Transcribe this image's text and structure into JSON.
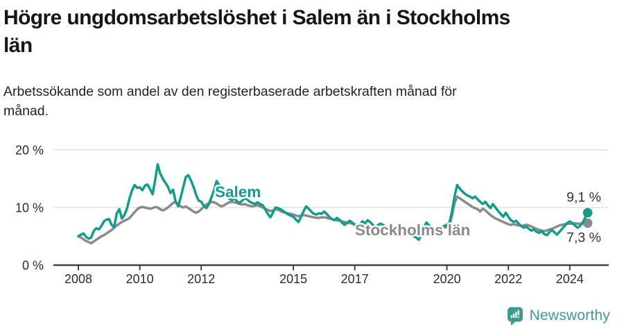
{
  "header": {
    "title_line_1": "Högre ungdomsarbetslöshet i Salem än i Stockholms",
    "title_line_2": "län",
    "subtitle_line_1": "Arbetssökande som andel av den registerbaserade arbetskraften månad för",
    "subtitle_line_2": "månad."
  },
  "chart_data": {
    "type": "line",
    "title": "Högre ungdomsarbetslöshet i Salem än i Stockholms län",
    "subtitle": "Arbetssökande som andel av den registerbaserade arbetskraften månad för månad.",
    "unit": "%",
    "frequency": "monthly",
    "x_start": "2008-01",
    "x_end": "2024-08",
    "ylim": [
      0,
      20
    ],
    "grid": "horizontal",
    "legend_position": "inline-labels",
    "y_axis": {
      "ticks": [
        {
          "value": 0,
          "label": "0 %"
        },
        {
          "value": 10,
          "label": "10 %"
        },
        {
          "value": 20,
          "label": "20 %"
        }
      ]
    },
    "x_axis": {
      "ticks": [
        {
          "year": 2008,
          "label": "2008"
        },
        {
          "year": 2010,
          "label": "2010"
        },
        {
          "year": 2012,
          "label": "2012"
        },
        {
          "year": 2015,
          "label": "2015"
        },
        {
          "year": 2017,
          "label": "2017"
        },
        {
          "year": 2020,
          "label": "2020"
        },
        {
          "year": 2022,
          "label": "2022"
        },
        {
          "year": 2024,
          "label": "2024"
        }
      ]
    },
    "series": [
      {
        "name": "Salem",
        "color": "#129c8d",
        "end_label": "9,1 %",
        "end_value": 9.1,
        "values": [
          5.0,
          5.3,
          5.5,
          4.9,
          4.6,
          4.8,
          5.9,
          6.4,
          6.2,
          6.8,
          7.6,
          7.9,
          8.0,
          7.0,
          6.6,
          9.0,
          9.7,
          8.1,
          8.7,
          9.8,
          11.6,
          13.0,
          13.9,
          13.4,
          13.5,
          13.0,
          13.8,
          14.0,
          13.2,
          12.3,
          14.8,
          17.5,
          15.9,
          15.0,
          14.3,
          13.6,
          12.5,
          13.1,
          11.0,
          10.2,
          11.8,
          13.6,
          15.3,
          15.6,
          14.7,
          13.6,
          12.2,
          11.2,
          11.0,
          10.3,
          9.9,
          10.6,
          11.8,
          13.0,
          14.6,
          13.9,
          13.2,
          12.6,
          12.0,
          11.5,
          11.3,
          11.6,
          11.1,
          10.8,
          11.2,
          11.6,
          11.4,
          11.0,
          10.8,
          10.6,
          10.9,
          10.6,
          10.4,
          9.7,
          8.9,
          8.3,
          9.1,
          10.0,
          9.9,
          9.7,
          9.4,
          9.1,
          8.8,
          8.6,
          8.4,
          7.9,
          7.5,
          8.4,
          9.4,
          10.2,
          9.8,
          9.3,
          8.9,
          8.8,
          9.0,
          8.9,
          9.3,
          8.9,
          8.4,
          8.0,
          7.8,
          8.2,
          7.9,
          7.4,
          7.0,
          7.3,
          7.7,
          7.4,
          6.9,
          6.6,
          7.1,
          7.6,
          7.2,
          7.8,
          7.5,
          7.0,
          6.6,
          6.9,
          7.2,
          7.0,
          6.7,
          6.4,
          6.8,
          6.3,
          5.9,
          6.4,
          6.7,
          6.3,
          5.9,
          5.6,
          5.3,
          5.0,
          4.8,
          4.4,
          5.4,
          6.6,
          7.4,
          6.9,
          6.5,
          6.2,
          6.0,
          6.3,
          6.6,
          6.8,
          7.0,
          7.4,
          9.4,
          12.0,
          13.9,
          13.3,
          12.8,
          12.4,
          12.1,
          11.9,
          11.6,
          11.9,
          11.4,
          11.0,
          10.6,
          11.0,
          10.4,
          9.9,
          10.6,
          10.0,
          9.4,
          8.9,
          8.4,
          9.1,
          8.4,
          7.8,
          7.5,
          7.7,
          7.2,
          6.8,
          6.5,
          6.7,
          6.3,
          6.0,
          6.2,
          5.8,
          5.6,
          5.9,
          5.4,
          5.2,
          5.7,
          6.1,
          5.7,
          5.3,
          5.8,
          6.3,
          6.8,
          7.3,
          7.6,
          7.3,
          6.9,
          6.5,
          6.8,
          7.4,
          8.2,
          9.1
        ]
      },
      {
        "name": "Stockholms län",
        "color": "#8a8a8a",
        "end_label": "7,3 %",
        "end_value": 7.3,
        "values": [
          5.0,
          4.8,
          4.5,
          4.2,
          4.0,
          3.8,
          4.1,
          4.4,
          4.7,
          5.0,
          5.2,
          5.5,
          5.8,
          6.1,
          6.5,
          6.9,
          7.2,
          7.5,
          7.7,
          7.9,
          8.2,
          8.7,
          9.2,
          9.7,
          10.0,
          10.1,
          10.0,
          9.9,
          9.8,
          9.9,
          10.1,
          10.0,
          9.7,
          9.5,
          9.7,
          10.0,
          10.4,
          10.8,
          11.0,
          10.6,
          10.2,
          10.0,
          10.2,
          9.9,
          9.6,
          9.3,
          9.1,
          9.3,
          9.7,
          10.1,
          10.5,
          10.8,
          11.0,
          10.9,
          10.7,
          10.4,
          10.2,
          10.4,
          10.7,
          10.9,
          11.0,
          10.9,
          10.8,
          10.6,
          10.5,
          10.6,
          10.4,
          10.3,
          10.2,
          10.3,
          10.4,
          10.2,
          10.0,
          9.8,
          9.6,
          9.4,
          9.5,
          9.7,
          9.6,
          9.4,
          9.2,
          9.1,
          9.0,
          8.9,
          8.8,
          8.6,
          8.5,
          8.6,
          8.7,
          8.6,
          8.5,
          8.4,
          8.3,
          8.2,
          8.2,
          8.3,
          8.3,
          8.2,
          8.1,
          8.0,
          7.9,
          7.8,
          7.7,
          7.6,
          7.5,
          7.4,
          7.3,
          7.2,
          7.1,
          7.0,
          6.9,
          6.8,
          6.7,
          6.7,
          6.6,
          6.5,
          6.4,
          6.4,
          6.3,
          6.2,
          6.2,
          6.1,
          6.0,
          5.9,
          5.9,
          5.8,
          5.8,
          5.9,
          5.8,
          5.8,
          5.9,
          5.9,
          6.0,
          6.0,
          6.1,
          6.0,
          6.0,
          6.1,
          6.2,
          6.1,
          6.2,
          6.3,
          6.4,
          6.5,
          6.6,
          6.9,
          8.6,
          10.8,
          11.9,
          11.6,
          11.3,
          11.0,
          10.7,
          10.4,
          10.1,
          9.9,
          9.7,
          9.3,
          9.8,
          9.5,
          9.1,
          8.7,
          8.4,
          8.1,
          7.9,
          7.7,
          7.5,
          7.3,
          7.1,
          7.0,
          7.1,
          7.0,
          6.9,
          6.8,
          6.9,
          7.0,
          6.9,
          6.7,
          6.5,
          6.3,
          6.1,
          6.0,
          5.9,
          6.0,
          6.2,
          6.3,
          6.5,
          6.7,
          6.9,
          7.0,
          7.1,
          7.2,
          7.2,
          7.2,
          7.3,
          7.2,
          7.2,
          7.2,
          7.2,
          7.3
        ]
      }
    ]
  },
  "footer": {
    "brand": "Newsworthy"
  },
  "colors": {
    "accent_teal": "#129c8d",
    "series_gray": "#8a8a8a",
    "axis": "#424242",
    "grid": "#dcdcdc",
    "tick_text": "#2b2b2b",
    "value_label_text": "#333333",
    "brand_teal": "#3e9b90"
  }
}
